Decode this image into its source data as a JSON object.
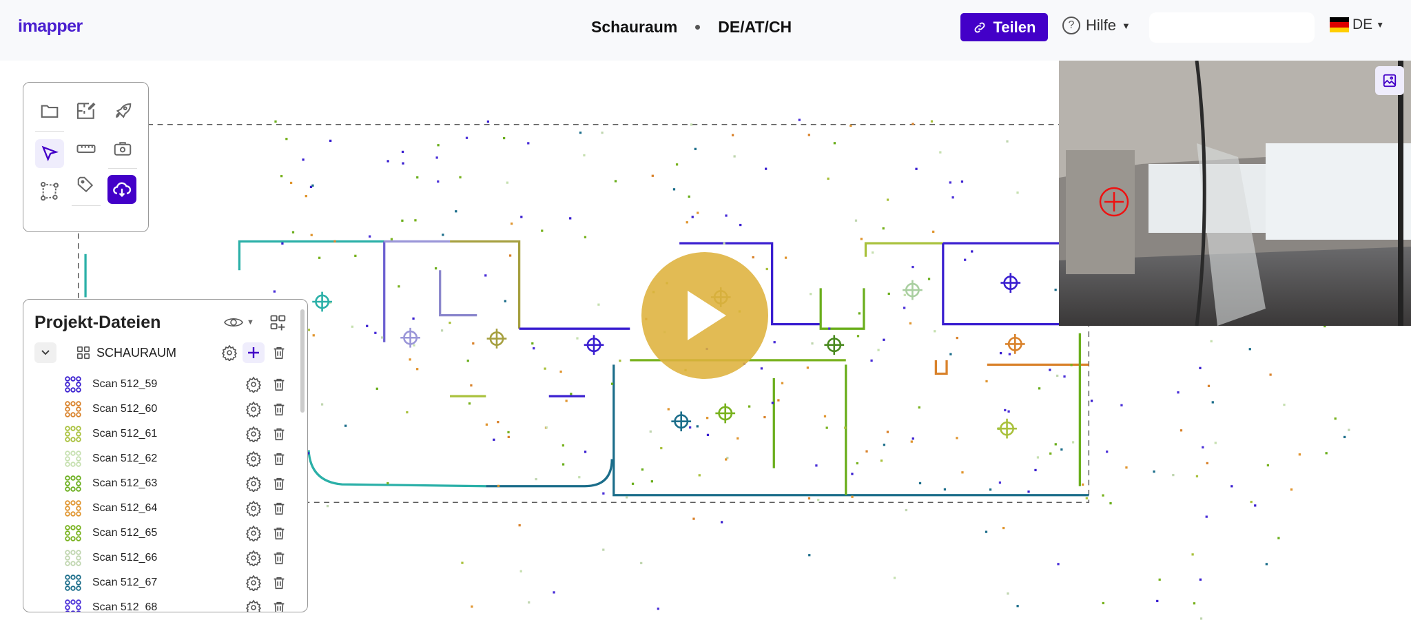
{
  "header": {
    "logo": "imapper",
    "project": "Schauraum",
    "region": "DE/AT/CH",
    "share_label": "Teilen",
    "help_label": "Hilfe",
    "language": "DE",
    "accent": "#4300c8"
  },
  "toolbar": {
    "tools": [
      "folder-icon",
      "floorplan-edit-icon",
      "rocket-icon",
      "select-arrow-icon",
      "ruler-icon",
      "camera-icon",
      "polygon-icon",
      "tag-icon",
      "cloud-download-icon"
    ],
    "active": "select-arrow-icon"
  },
  "panel": {
    "title": "Projekt-Dateien",
    "group": "SCHAURAUM",
    "scans": [
      {
        "name": "Scan 512_59",
        "color": "#3a1fd0"
      },
      {
        "name": "Scan 512_60",
        "color": "#d9822b"
      },
      {
        "name": "Scan 512_61",
        "color": "#a9c13c"
      },
      {
        "name": "Scan 512_62",
        "color": "#c6e0b0"
      },
      {
        "name": "Scan 512_63",
        "color": "#6aae1c"
      },
      {
        "name": "Scan 512_64",
        "color": "#e0952f"
      },
      {
        "name": "Scan 512_65",
        "color": "#78b21e"
      },
      {
        "name": "Scan 512_66",
        "color": "#c0d6b0"
      },
      {
        "name": "Scan 512_67",
        "color": "#1b6d8a"
      },
      {
        "name": "Scan 512_68",
        "color": "#4a2fd8"
      }
    ]
  }
}
